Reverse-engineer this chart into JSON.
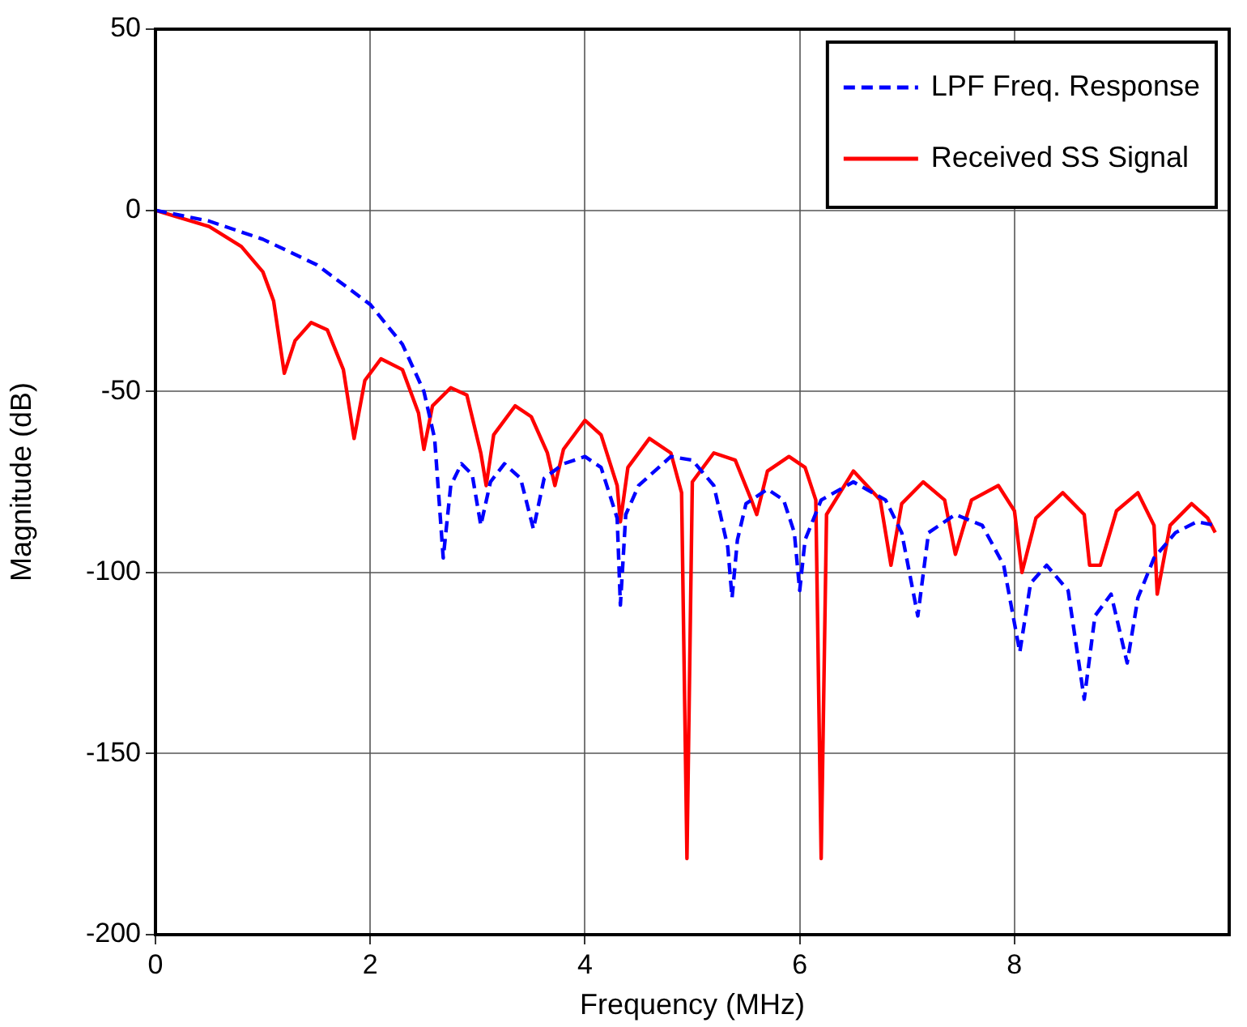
{
  "chart_data": {
    "type": "line",
    "xlabel": "Frequency (MHz)",
    "ylabel": "Magnitude (dB)",
    "xlim": [
      0,
      10
    ],
    "xticks": [
      0,
      2,
      4,
      6,
      8
    ],
    "ylim": [
      -200,
      50
    ],
    "yticks": [
      -200,
      -150,
      -100,
      -50,
      0,
      50
    ],
    "grid": true,
    "legend": "top right",
    "marker": "none",
    "series": [
      {
        "name": "LPF Freq. Response",
        "color": "#0000ff",
        "line_style": "dashed",
        "x": [
          0,
          0.5,
          1,
          1.5,
          2,
          2.3,
          2.5,
          2.6,
          2.68,
          2.75,
          2.85,
          2.95,
          3.03,
          3.12,
          3.25,
          3.4,
          3.52,
          3.62,
          3.8,
          4,
          4.15,
          4.3,
          4.33,
          4.38,
          4.5,
          4.8,
          5,
          5.2,
          5.33,
          5.37,
          5.42,
          5.5,
          5.7,
          5.85,
          5.95,
          6,
          6.05,
          6.2,
          6.5,
          6.8,
          6.95,
          7.1,
          7.2,
          7.45,
          7.7,
          7.9,
          8.05,
          8.15,
          8.3,
          8.5,
          8.65,
          8.75,
          8.9,
          9.05,
          9.15,
          9.3,
          9.5,
          9.7,
          9.87
        ],
        "values": [
          0,
          -3,
          -8,
          -15,
          -26,
          -37,
          -50,
          -63,
          -96,
          -76,
          -70,
          -73,
          -87,
          -75,
          -70,
          -74,
          -88,
          -74,
          -70,
          -68,
          -71,
          -85,
          -109,
          -84,
          -76,
          -68,
          -69,
          -76,
          -93,
          -107,
          -91,
          -81,
          -77,
          -80,
          -89,
          -105,
          -91,
          -80,
          -75,
          -80,
          -89,
          -112,
          -89,
          -84,
          -87,
          -98,
          -122,
          -103,
          -98,
          -105,
          -135,
          -112,
          -106,
          -125,
          -107,
          -96,
          -89,
          -86,
          -87
        ]
      },
      {
        "name": "Received SS Signal",
        "color": "#ff0000",
        "line_style": "solid",
        "x": [
          0,
          0.5,
          0.8,
          1,
          1.1,
          1.2,
          1.3,
          1.45,
          1.6,
          1.75,
          1.85,
          1.95,
          2.1,
          2.3,
          2.45,
          2.5,
          2.58,
          2.75,
          2.9,
          3.03,
          3.08,
          3.15,
          3.35,
          3.5,
          3.65,
          3.72,
          3.8,
          4,
          4.15,
          4.3,
          4.33,
          4.4,
          4.6,
          4.8,
          4.9,
          4.95,
          5,
          5.2,
          5.4,
          5.55,
          5.6,
          5.7,
          5.9,
          6.05,
          6.15,
          6.2,
          6.25,
          6.5,
          6.75,
          6.85,
          6.95,
          7.15,
          7.35,
          7.45,
          7.6,
          7.85,
          8,
          8.07,
          8.2,
          8.45,
          8.65,
          8.7,
          8.8,
          8.95,
          9.15,
          9.3,
          9.33,
          9.45,
          9.65,
          9.8,
          9.87
        ],
        "values": [
          0,
          -4.5,
          -10,
          -17,
          -25,
          -45,
          -36,
          -31,
          -33,
          -44,
          -63,
          -47,
          -41,
          -44,
          -56,
          -66,
          -54,
          -49,
          -51,
          -67,
          -76,
          -62,
          -54,
          -57,
          -67,
          -76,
          -66,
          -58,
          -62,
          -76,
          -86,
          -71,
          -63,
          -67,
          -78,
          -179,
          -75,
          -67,
          -69,
          -80,
          -84,
          -72,
          -68,
          -71,
          -80,
          -179,
          -84,
          -72,
          -80,
          -98,
          -81,
          -75,
          -80,
          -95,
          -80,
          -76,
          -83,
          -100,
          -85,
          -78,
          -84,
          -98,
          -98,
          -83,
          -78,
          -87,
          -106,
          -87,
          -81,
          -85,
          -89
        ]
      }
    ]
  }
}
